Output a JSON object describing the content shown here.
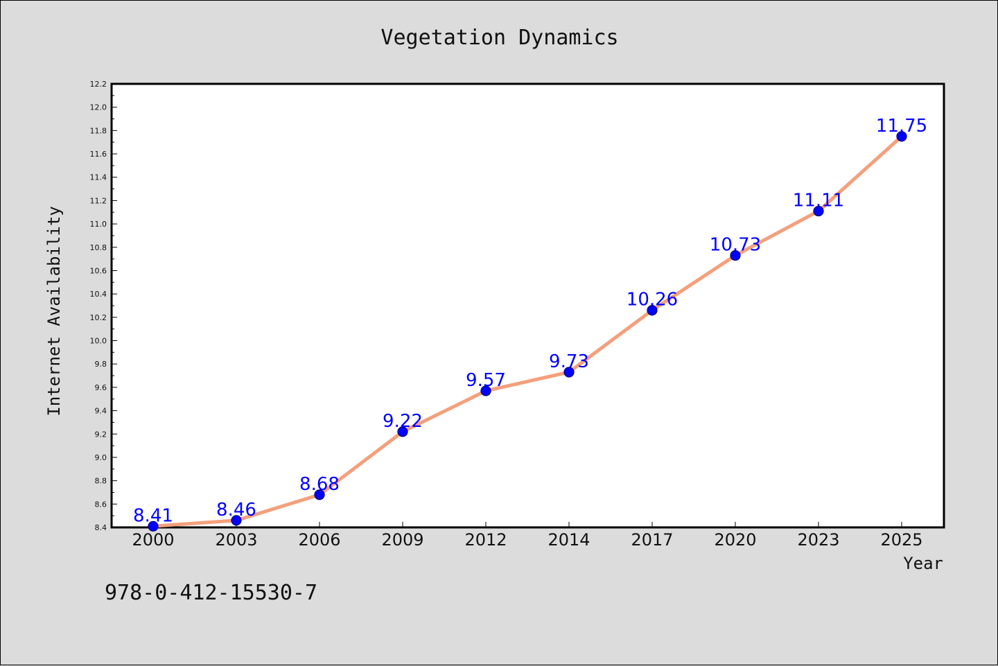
{
  "footer_text": "978-0-412-15530-7",
  "colors": {
    "background": "#dcdcdc",
    "plot_background": "#ffffff",
    "line": "#f4a07c",
    "marker": "#0000ff",
    "label": "#0000ff"
  },
  "chart_data": {
    "type": "line",
    "title": "Vegetation Dynamics",
    "xlabel": "Year",
    "ylabel": "Internet Availability",
    "categories": [
      "2000",
      "2003",
      "2006",
      "2009",
      "2012",
      "2014",
      "2017",
      "2020",
      "2023",
      "2025"
    ],
    "series": [
      {
        "values": [
          8.41,
          8.46,
          8.68,
          9.22,
          9.57,
          9.73,
          10.26,
          10.73,
          11.11,
          11.75
        ],
        "data_labels": [
          "8.41",
          "8.46",
          "8.68",
          "9.22",
          "9.57",
          "9.73",
          "10.26",
          "10.73",
          "11.11",
          "11.75"
        ]
      }
    ],
    "ylim": [
      8.4,
      12.2
    ],
    "yticks": [
      "8.4",
      "8.6",
      "8.8",
      "9.0",
      "9.2",
      "9.4",
      "9.6",
      "9.8",
      "10.0",
      "10.2",
      "10.4",
      "10.6",
      "10.8",
      "11.0",
      "11.2",
      "11.4",
      "11.6",
      "11.8",
      "12.0",
      "12.2"
    ],
    "grid": false,
    "legend": "none"
  }
}
